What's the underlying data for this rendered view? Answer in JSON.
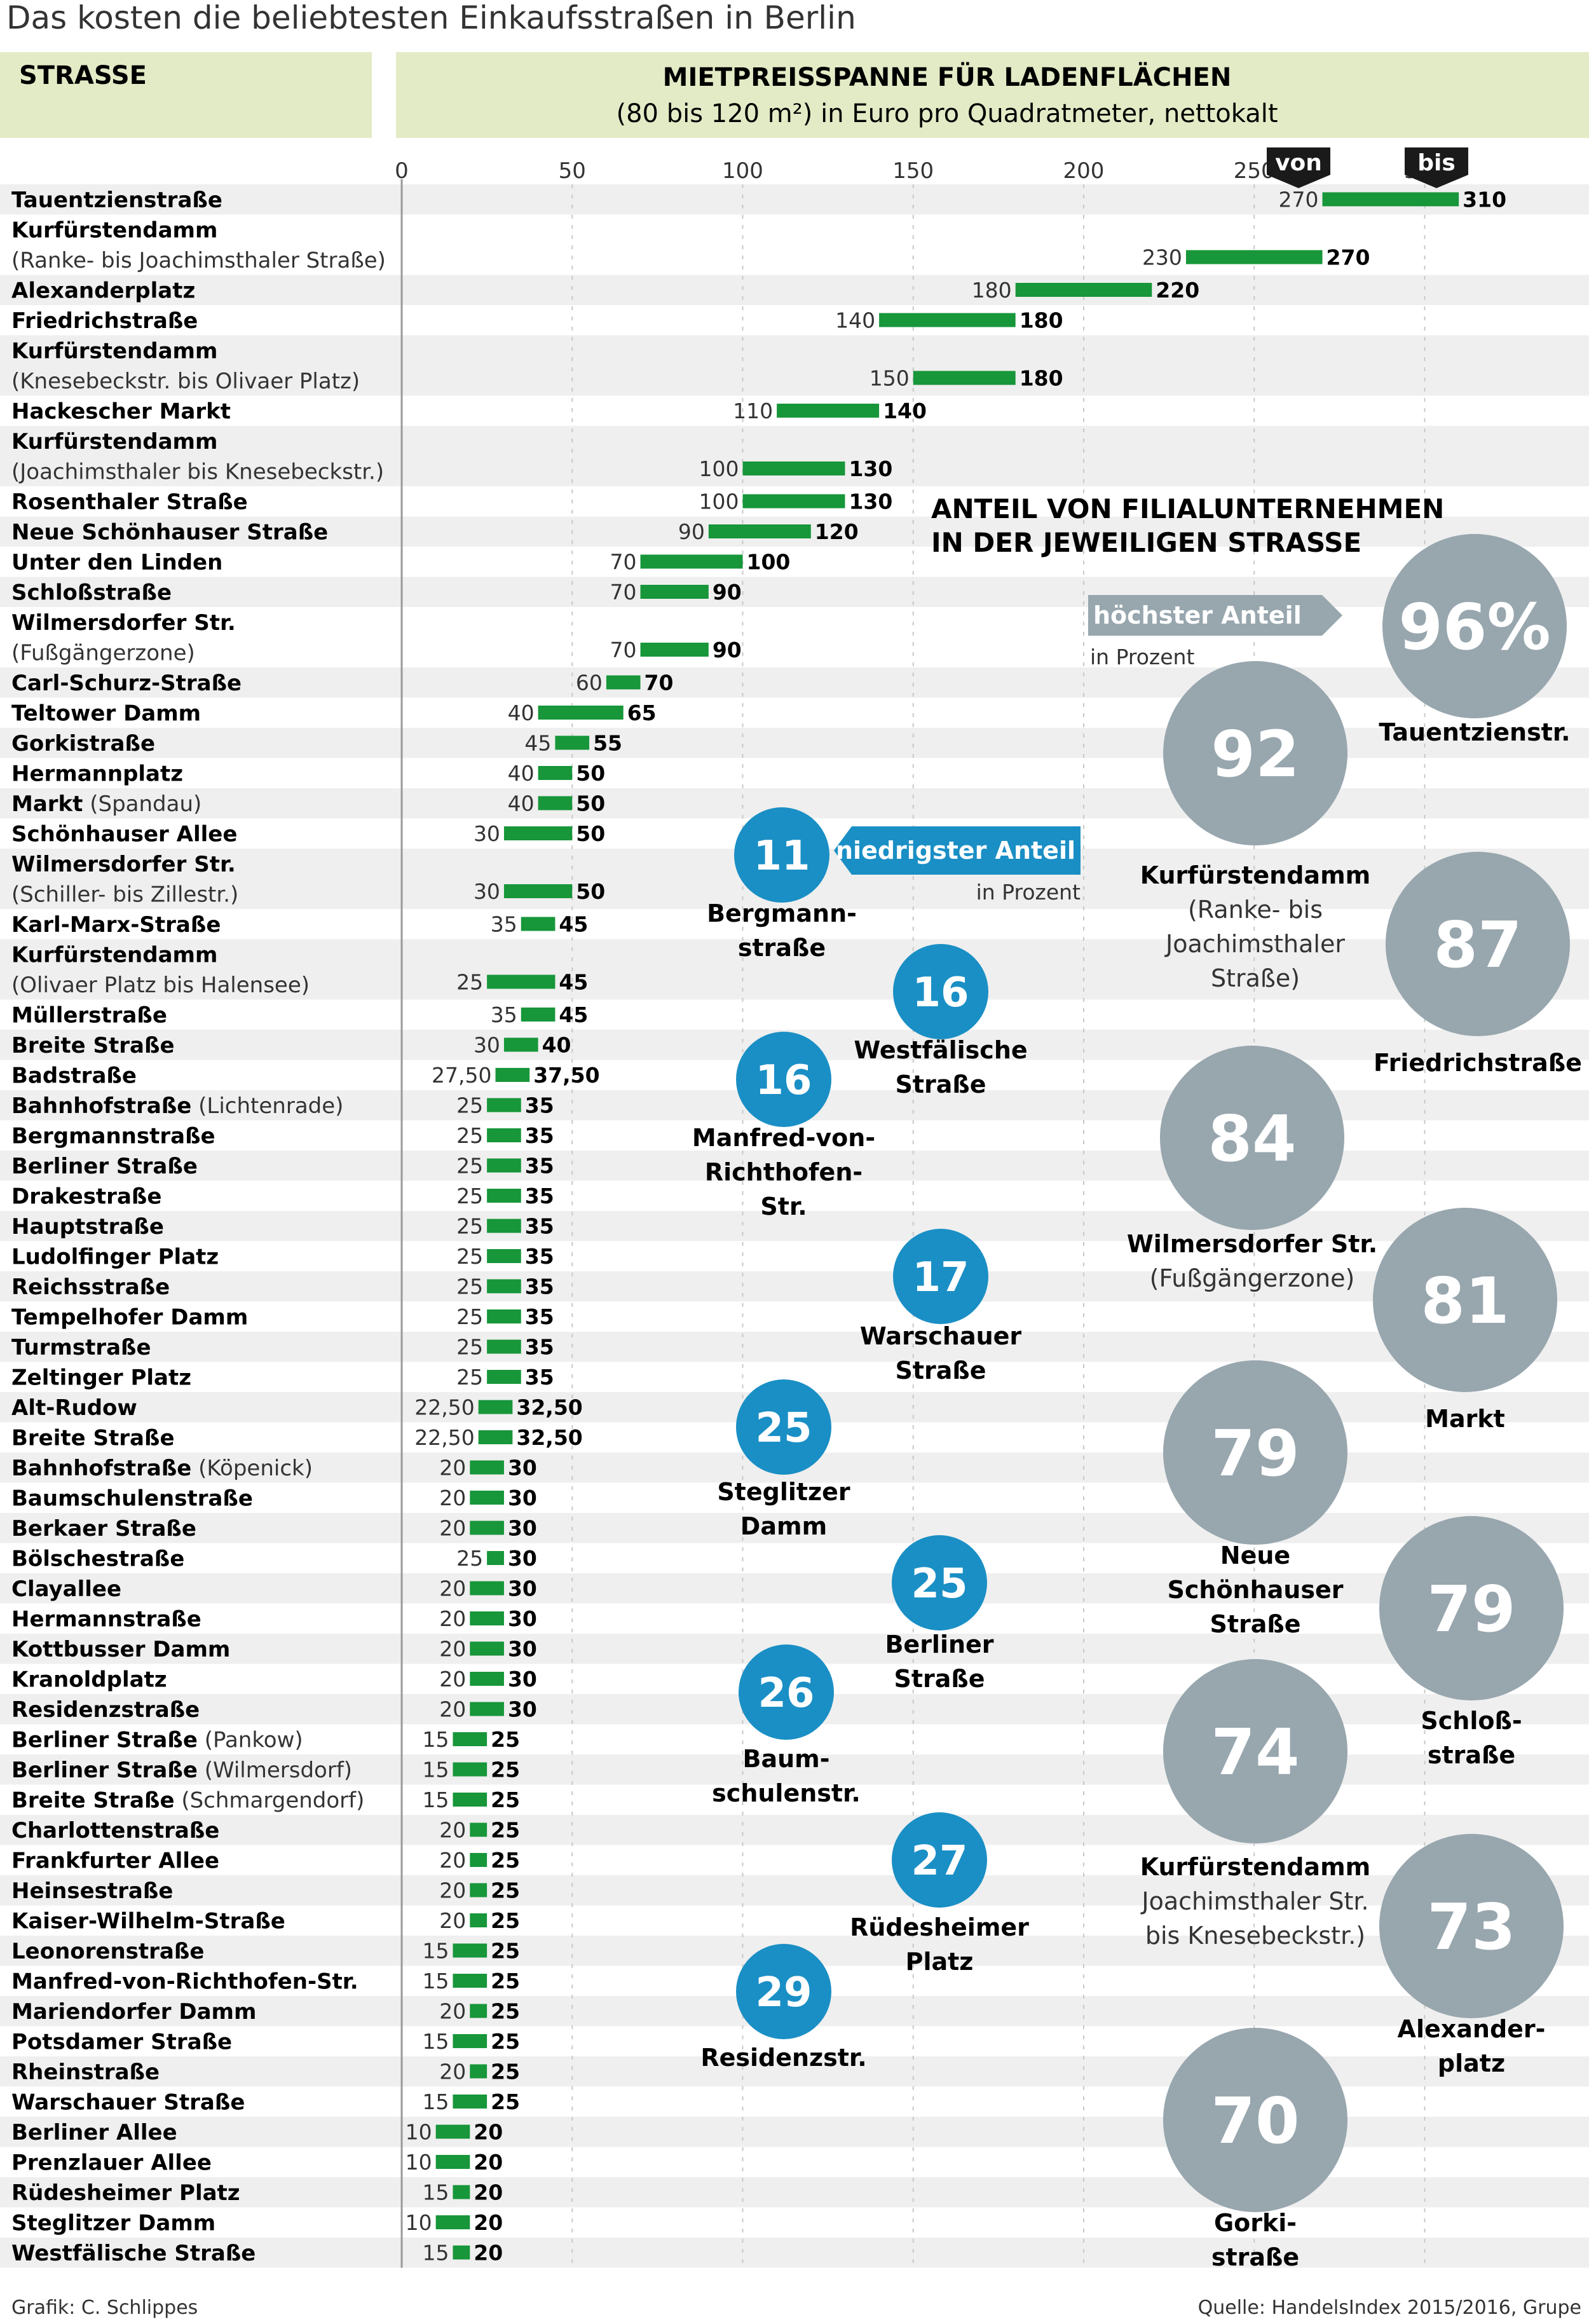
{
  "title": "Das kosten die beliebtesten Einkaufsstraßen in Berlin",
  "header": {
    "street_col": "STRASSE",
    "range_title": "MIETPREISSPANNE FÜR LADENFLÄCHEN",
    "range_sub": "(80 bis 120 m²) in Euro pro Quadratmeter, nettokalt",
    "von": "von",
    "bis": "bis"
  },
  "colors": {
    "header_bg": "#e3ebc6",
    "stripe": "#efefef",
    "bar": "#17963a",
    "circle_high": "#98a6ae",
    "circle_low": "#1a8fc5",
    "text": "#1a1a1a"
  },
  "chart_data": {
    "type": "bar",
    "orientation": "horizontal-range",
    "xlim": [
      0,
      330
    ],
    "x_ticks": [
      0,
      50,
      100,
      150,
      200,
      250,
      300
    ],
    "series": [
      {
        "name": "von",
        "role": "min"
      },
      {
        "name": "bis",
        "role": "max"
      }
    ],
    "rows": [
      {
        "name": "Tauentzienstraße",
        "sub": "",
        "von": 270,
        "bis": 310,
        "von_label": "270",
        "bis_label": "310"
      },
      {
        "name": "Kurfürstendamm",
        "sub": "(Ranke- bis Joachimsthaler Straße)",
        "von": 230,
        "bis": 270,
        "von_label": "230",
        "bis_label": "270"
      },
      {
        "name": "Alexanderplatz",
        "sub": "",
        "von": 180,
        "bis": 220,
        "von_label": "180",
        "bis_label": "220"
      },
      {
        "name": "Friedrichstraße",
        "sub": "",
        "von": 140,
        "bis": 180,
        "von_label": "140",
        "bis_label": "180"
      },
      {
        "name": "Kurfürstendamm",
        "sub": "(Knesebeckstr. bis Olivaer Platz)",
        "von": 150,
        "bis": 180,
        "von_label": "150",
        "bis_label": "180"
      },
      {
        "name": "Hackescher Markt",
        "sub": "",
        "von": 110,
        "bis": 140,
        "von_label": "110",
        "bis_label": "140"
      },
      {
        "name": "Kurfürstendamm",
        "sub": "(Joachimsthaler bis Knesebeckstr.)",
        "von": 100,
        "bis": 130,
        "von_label": "100",
        "bis_label": "130"
      },
      {
        "name": "Rosenthaler Straße",
        "sub": "",
        "von": 100,
        "bis": 130,
        "von_label": "100",
        "bis_label": "130"
      },
      {
        "name": "Neue Schönhauser Straße",
        "sub": "",
        "von": 90,
        "bis": 120,
        "von_label": "90",
        "bis_label": "120"
      },
      {
        "name": "Unter den Linden",
        "sub": "",
        "von": 70,
        "bis": 100,
        "von_label": "70",
        "bis_label": "100"
      },
      {
        "name": "Schloßstraße",
        "sub": "",
        "von": 70,
        "bis": 90,
        "von_label": "70",
        "bis_label": "90"
      },
      {
        "name": "Wilmersdorfer Str.",
        "sub": "(Fußgängerzone)",
        "von": 70,
        "bis": 90,
        "von_label": "70",
        "bis_label": "90"
      },
      {
        "name": "Carl-Schurz-Straße",
        "sub": "",
        "von": 60,
        "bis": 70,
        "von_label": "60",
        "bis_label": "70"
      },
      {
        "name": "Teltower Damm",
        "sub": "",
        "von": 40,
        "bis": 65,
        "von_label": "40",
        "bis_label": "65"
      },
      {
        "name": "Gorkistraße",
        "sub": "",
        "von": 45,
        "bis": 55,
        "von_label": "45",
        "bis_label": "55"
      },
      {
        "name": "Hermannplatz",
        "sub": "",
        "von": 40,
        "bis": 50,
        "von_label": "40",
        "bis_label": "50"
      },
      {
        "name": "Markt",
        "sub": "(Spandau)",
        "inline": true,
        "von": 40,
        "bis": 50,
        "von_label": "40",
        "bis_label": "50"
      },
      {
        "name": "Schönhauser Allee",
        "sub": "",
        "von": 30,
        "bis": 50,
        "von_label": "30",
        "bis_label": "50"
      },
      {
        "name": "Wilmersdorfer Str.",
        "sub": "(Schiller- bis Zillestr.)",
        "von": 30,
        "bis": 50,
        "von_label": "30",
        "bis_label": "50"
      },
      {
        "name": "Karl-Marx-Straße",
        "sub": "",
        "von": 35,
        "bis": 45,
        "von_label": "35",
        "bis_label": "45"
      },
      {
        "name": "Kurfürstendamm",
        "sub": "(Olivaer Platz bis Halensee)",
        "von": 25,
        "bis": 45,
        "von_label": "25",
        "bis_label": "45"
      },
      {
        "name": "Müllerstraße",
        "sub": "",
        "von": 35,
        "bis": 45,
        "von_label": "35",
        "bis_label": "45"
      },
      {
        "name": "Breite Straße",
        "sub": "",
        "von": 30,
        "bis": 40,
        "von_label": "30",
        "bis_label": "40"
      },
      {
        "name": "Badstraße",
        "sub": "",
        "von": 27.5,
        "bis": 37.5,
        "von_label": "27,50",
        "bis_label": "37,50"
      },
      {
        "name": "Bahnhofstraße",
        "sub": "(Lichtenrade)",
        "inline": true,
        "von": 25,
        "bis": 35,
        "von_label": "25",
        "bis_label": "35"
      },
      {
        "name": "Bergmannstraße",
        "sub": "",
        "von": 25,
        "bis": 35,
        "von_label": "25",
        "bis_label": "35"
      },
      {
        "name": "Berliner Straße",
        "sub": "",
        "von": 25,
        "bis": 35,
        "von_label": "25",
        "bis_label": "35"
      },
      {
        "name": "Drakestraße",
        "sub": "",
        "von": 25,
        "bis": 35,
        "von_label": "25",
        "bis_label": "35"
      },
      {
        "name": "Hauptstraße",
        "sub": "",
        "von": 25,
        "bis": 35,
        "von_label": "25",
        "bis_label": "35"
      },
      {
        "name": "Ludolfinger Platz",
        "sub": "",
        "von": 25,
        "bis": 35,
        "von_label": "25",
        "bis_label": "35"
      },
      {
        "name": "Reichsstraße",
        "sub": "",
        "von": 25,
        "bis": 35,
        "von_label": "25",
        "bis_label": "35"
      },
      {
        "name": "Tempelhofer Damm",
        "sub": "",
        "von": 25,
        "bis": 35,
        "von_label": "25",
        "bis_label": "35"
      },
      {
        "name": "Turmstraße",
        "sub": "",
        "von": 25,
        "bis": 35,
        "von_label": "25",
        "bis_label": "35"
      },
      {
        "name": "Zeltinger Platz",
        "sub": "",
        "von": 25,
        "bis": 35,
        "von_label": "25",
        "bis_label": "35"
      },
      {
        "name": "Alt-Rudow",
        "sub": "",
        "von": 22.5,
        "bis": 32.5,
        "von_label": "22,50",
        "bis_label": "32,50"
      },
      {
        "name": "Breite Straße",
        "sub": "",
        "von": 22.5,
        "bis": 32.5,
        "von_label": "22,50",
        "bis_label": "32,50"
      },
      {
        "name": "Bahnhofstraße",
        "sub": "(Köpenick)",
        "inline": true,
        "von": 20,
        "bis": 30,
        "von_label": "20",
        "bis_label": "30"
      },
      {
        "name": "Baumschulenstraße",
        "sub": "",
        "von": 20,
        "bis": 30,
        "von_label": "20",
        "bis_label": "30"
      },
      {
        "name": "Berkaer Straße",
        "sub": "",
        "von": 20,
        "bis": 30,
        "von_label": "20",
        "bis_label": "30"
      },
      {
        "name": "Bölschestraße",
        "sub": "",
        "von": 25,
        "bis": 30,
        "von_label": "25",
        "bis_label": "30"
      },
      {
        "name": "Clayallee",
        "sub": "",
        "von": 20,
        "bis": 30,
        "von_label": "20",
        "bis_label": "30"
      },
      {
        "name": "Hermannstraße",
        "sub": "",
        "von": 20,
        "bis": 30,
        "von_label": "20",
        "bis_label": "30"
      },
      {
        "name": "Kottbusser Damm",
        "sub": "",
        "von": 20,
        "bis": 30,
        "von_label": "20",
        "bis_label": "30"
      },
      {
        "name": "Kranoldplatz",
        "sub": "",
        "von": 20,
        "bis": 30,
        "von_label": "20",
        "bis_label": "30"
      },
      {
        "name": "Residenzstraße",
        "sub": "",
        "von": 20,
        "bis": 30,
        "von_label": "20",
        "bis_label": "30"
      },
      {
        "name": "Berliner Straße",
        "sub": "(Pankow)",
        "inline": true,
        "von": 15,
        "bis": 25,
        "von_label": "15",
        "bis_label": "25"
      },
      {
        "name": "Berliner Straße",
        "sub": "(Wilmersdorf)",
        "inline": true,
        "von": 15,
        "bis": 25,
        "von_label": "15",
        "bis_label": "25"
      },
      {
        "name": "Breite Straße",
        "sub": "(Schmargendorf)",
        "inline": true,
        "von": 15,
        "bis": 25,
        "von_label": "15",
        "bis_label": "25"
      },
      {
        "name": "Charlottenstraße",
        "sub": "",
        "von": 20,
        "bis": 25,
        "von_label": "20",
        "bis_label": "25"
      },
      {
        "name": "Frankfurter Allee",
        "sub": "",
        "von": 20,
        "bis": 25,
        "von_label": "20",
        "bis_label": "25"
      },
      {
        "name": "Heinsestraße",
        "sub": "",
        "von": 20,
        "bis": 25,
        "von_label": "20",
        "bis_label": "25"
      },
      {
        "name": "Kaiser-Wilhelm-Straße",
        "sub": "",
        "von": 20,
        "bis": 25,
        "von_label": "20",
        "bis_label": "25"
      },
      {
        "name": "Leonorenstraße",
        "sub": "",
        "von": 15,
        "bis": 25,
        "von_label": "15",
        "bis_label": "25"
      },
      {
        "name": "Manfred-von-Richthofen-Str.",
        "sub": "",
        "von": 15,
        "bis": 25,
        "von_label": "15",
        "bis_label": "25"
      },
      {
        "name": "Mariendorfer Damm",
        "sub": "",
        "von": 20,
        "bis": 25,
        "von_label": "20",
        "bis_label": "25"
      },
      {
        "name": "Potsdamer Straße",
        "sub": "",
        "von": 15,
        "bis": 25,
        "von_label": "15",
        "bis_label": "25"
      },
      {
        "name": "Rheinstraße",
        "sub": "",
        "von": 20,
        "bis": 25,
        "von_label": "20",
        "bis_label": "25"
      },
      {
        "name": "Warschauer Straße",
        "sub": "",
        "von": 15,
        "bis": 25,
        "von_label": "15",
        "bis_label": "25"
      },
      {
        "name": "Berliner Allee",
        "sub": "",
        "von": 10,
        "bis": 20,
        "von_label": "10",
        "bis_label": "20"
      },
      {
        "name": "Prenzlauer Allee",
        "sub": "",
        "von": 10,
        "bis": 20,
        "von_label": "10",
        "bis_label": "20"
      },
      {
        "name": "Rüdesheimer Platz",
        "sub": "",
        "von": 15,
        "bis": 20,
        "von_label": "15",
        "bis_label": "20"
      },
      {
        "name": "Steglitzer Damm",
        "sub": "",
        "von": 10,
        "bis": 20,
        "von_label": "10",
        "bis_label": "20"
      },
      {
        "name": "Westfälische Straße",
        "sub": "",
        "von": 15,
        "bis": 20,
        "von_label": "15",
        "bis_label": "20"
      }
    ]
  },
  "share": {
    "title_lines": [
      "ANTEIL VON FILIALUNTERNEHMEN",
      "IN DER JEWEILIGEN STRASSE"
    ],
    "highest_label": "höchster Anteil",
    "highest_unit": "in Prozent",
    "lowest_label": "niedrigster Anteil",
    "lowest_unit": "in Prozent",
    "high": [
      {
        "value": "96%",
        "label_bold": [
          "Tauentzienstr."
        ],
        "label_reg": []
      },
      {
        "value": "92",
        "label_bold": [
          "Kurfürstendamm"
        ],
        "label_reg": [
          "(Ranke- bis",
          "Joachimsthaler",
          "Straße)"
        ]
      },
      {
        "value": "87",
        "label_bold": [
          "Friedrichstraße"
        ],
        "label_reg": []
      },
      {
        "value": "84",
        "label_bold": [
          "Wilmersdorfer Str."
        ],
        "label_reg": [
          "(Fußgängerzone)"
        ]
      },
      {
        "value": "81",
        "label_bold": [
          "Markt"
        ],
        "label_reg": []
      },
      {
        "value": "79",
        "label_bold": [
          "Neue",
          "Schönhauser",
          "Straße"
        ],
        "label_reg": []
      },
      {
        "value": "79",
        "label_bold": [
          "Schloß-",
          "straße"
        ],
        "label_reg": []
      },
      {
        "value": "74",
        "label_bold": [
          "Kurfürstendamm"
        ],
        "label_reg": [
          "Joachimsthaler Str.",
          "bis Knesebeckstr.)"
        ]
      },
      {
        "value": "73",
        "label_bold": [
          "Alexander-",
          "platz"
        ],
        "label_reg": []
      },
      {
        "value": "70",
        "label_bold": [
          "Gorki-",
          "straße"
        ],
        "label_reg": []
      }
    ],
    "low": [
      {
        "value": "11",
        "label_bold": [
          "Bergmann-",
          "straße"
        ]
      },
      {
        "value": "16",
        "label_bold": [
          "Westfälische",
          "Straße"
        ]
      },
      {
        "value": "16",
        "label_bold": [
          "Manfred-von-",
          "Richthofen-",
          "Str."
        ]
      },
      {
        "value": "17",
        "label_bold": [
          "Warschauer",
          "Straße"
        ]
      },
      {
        "value": "25",
        "label_bold": [
          "Steglitzer",
          "Damm"
        ]
      },
      {
        "value": "25",
        "label_bold": [
          "Berliner",
          "Straße"
        ]
      },
      {
        "value": "26",
        "label_bold": [
          "Baum-",
          "schulenstr."
        ]
      },
      {
        "value": "27",
        "label_bold": [
          "Rüdesheimer",
          "Platz"
        ]
      },
      {
        "value": "29",
        "label_bold": [
          "Residenzstr."
        ]
      }
    ]
  },
  "footer": {
    "credit": "Grafik: C. Schlippes",
    "source": "Quelle:  HandelsIndex 2015/2016, Grupe"
  }
}
